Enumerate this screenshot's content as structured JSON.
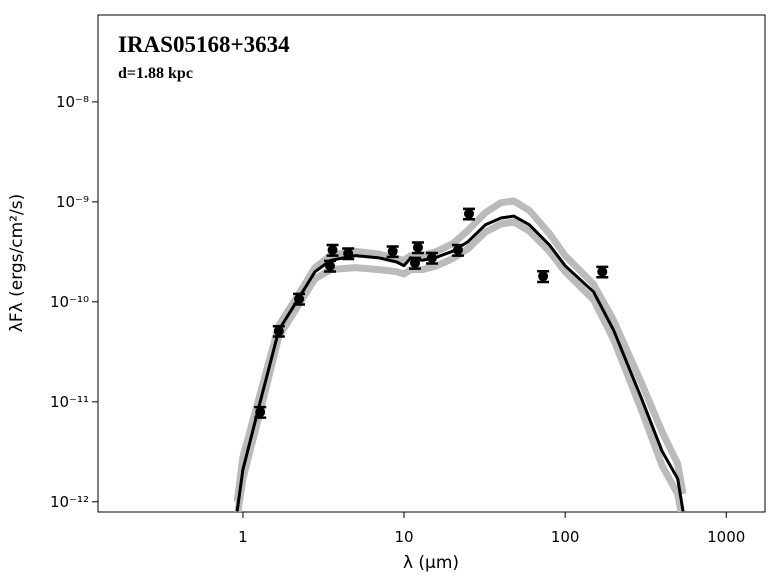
{
  "chart_data": {
    "type": "scatter",
    "title": "IRAS05168+3634",
    "subtitle": "d=1.88 kpc",
    "x_label": "λ (μm)",
    "y_label": "λFλ (ergs/cm²/s)",
    "log_x": true,
    "log_y": true,
    "xlim": [
      0.126,
      1740
    ],
    "ylim": [
      7.9e-13,
      7.4e-08
    ],
    "xticks": [
      1,
      10,
      100,
      1000
    ],
    "yticks": [
      {
        "value": 1e-12,
        "label": "10⁻¹²"
      },
      {
        "value": 1e-11,
        "label": "10⁻¹¹"
      },
      {
        "value": 1e-10,
        "label": "10⁻¹⁰"
      },
      {
        "value": 1e-09,
        "label": "10⁻⁹"
      },
      {
        "value": 1e-08,
        "label": "10⁻⁸"
      }
    ],
    "series": [
      {
        "kind": "line",
        "color": "#bbbbbb",
        "x": [
          0.92,
          1.0,
          1.28,
          1.67,
          2.23,
          2.8,
          3.5,
          5,
          7,
          9,
          10,
          11,
          13,
          16,
          20,
          25,
          32,
          40,
          48,
          60,
          80,
          100,
          150,
          200,
          300,
          400,
          500,
          540
        ],
        "values": [
          1e-12,
          2.8e-12,
          1.2e-11,
          5.8e-11,
          1.2e-10,
          2.2e-10,
          2.9e-10,
          3.2e-10,
          3e-10,
          2.7e-10,
          2.6e-10,
          2.9e-10,
          2.9e-10,
          3.2e-10,
          3.8e-10,
          5.2e-10,
          7.8e-10,
          9.8e-10,
          1.02e-09,
          8.2e-10,
          4.8e-10,
          2.9e-10,
          1.5e-10,
          6.5e-11,
          1.5e-11,
          5e-12,
          2.4e-12,
          1.2e-12
        ]
      },
      {
        "kind": "line",
        "color": "#bbbbbb",
        "x": [
          0.92,
          1.0,
          1.28,
          1.67,
          2.23,
          2.8,
          3.5,
          5,
          7,
          9,
          10,
          11,
          13,
          16,
          20,
          25,
          32,
          40,
          48,
          60,
          80,
          100,
          150,
          200,
          300,
          400,
          500,
          540
        ],
        "values": [
          7e-13,
          1.7e-12,
          8e-12,
          4.5e-11,
          9.5e-11,
          1.7e-10,
          2.1e-10,
          2.2e-10,
          2.1e-10,
          2e-10,
          1.9e-10,
          2.1e-10,
          2.1e-10,
          2.3e-10,
          2.7e-10,
          3.4e-10,
          5e-10,
          6e-10,
          6.3e-10,
          5.1e-10,
          3.2e-10,
          2e-10,
          1.05e-10,
          4.2e-11,
          8e-12,
          2.3e-12,
          1.2e-12,
          6e-13
        ]
      },
      {
        "kind": "line",
        "color": "#000000",
        "x": [
          0.92,
          1.0,
          1.28,
          1.67,
          2.23,
          2.8,
          3.5,
          5,
          7,
          9,
          10,
          11,
          13,
          16,
          20,
          25,
          32,
          40,
          48,
          60,
          80,
          100,
          150,
          200,
          300,
          400,
          500,
          540
        ],
        "values": [
          8e-13,
          2.1e-12,
          1e-11,
          5.2e-11,
          1.1e-10,
          2e-10,
          2.6e-10,
          2.9e-10,
          2.75e-10,
          2.5e-10,
          2.3e-10,
          2.75e-10,
          2.6e-10,
          2.8e-10,
          3.2e-10,
          4e-10,
          5.9e-10,
          6.9e-10,
          7.2e-10,
          5.9e-10,
          3.7e-10,
          2.3e-10,
          1.26e-10,
          5.2e-11,
          1.05e-11,
          3.2e-12,
          1.7e-12,
          8e-13
        ]
      },
      {
        "kind": "points",
        "color": "#000000",
        "x": [
          1.28,
          1.67,
          2.23,
          3.47,
          3.6,
          4.5,
          8.5,
          11.7,
          12.2,
          14.9,
          21.6,
          25.3,
          73,
          170
        ],
        "values": [
          7.9e-12,
          5.1e-11,
          1.07e-10,
          2.29e-10,
          3.3e-10,
          3.05e-10,
          3.2e-10,
          2.45e-10,
          3.5e-10,
          2.75e-10,
          3.3e-10,
          7.6e-10,
          1.8e-10,
          2e-10
        ],
        "errors": [
          9.5e-13,
          6e-12,
          1.3e-11,
          2.8e-11,
          4e-11,
          3.7e-11,
          3.8e-11,
          3e-11,
          4.2e-11,
          3.3e-11,
          4e-11,
          9e-11,
          2.2e-11,
          2.4e-11
        ]
      }
    ]
  }
}
